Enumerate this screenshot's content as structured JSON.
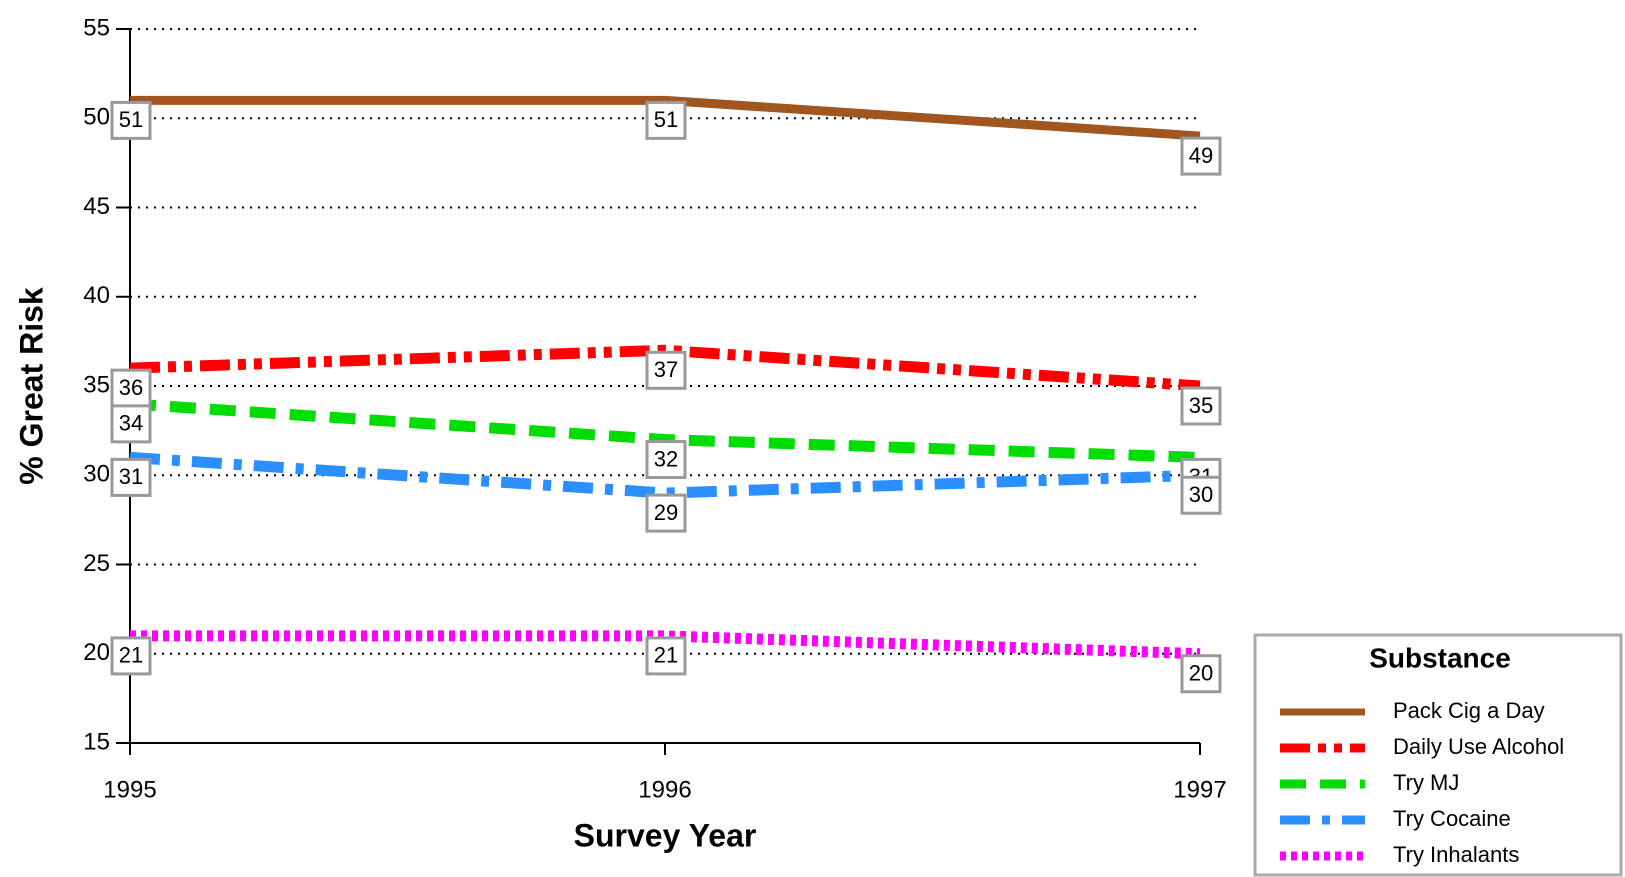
{
  "chart_data": {
    "type": "line",
    "x_label": "Survey Year",
    "y_label": "% Great Risk",
    "x": [
      1995,
      1996,
      1997
    ],
    "xlim": [
      1995,
      1997
    ],
    "xticks": [
      1995,
      1996,
      1997
    ],
    "ylim": [
      15,
      55
    ],
    "yticks": [
      15,
      20,
      25,
      30,
      35,
      40,
      45,
      50,
      55
    ],
    "grid": true,
    "legend_title": "Substance",
    "legend": "lower right",
    "series": [
      {
        "name": "Pack Cig a Day",
        "color": "#a0561e",
        "values": [
          51,
          51,
          49
        ]
      },
      {
        "name": "Daily Use Alcohol",
        "color": "#ff0000",
        "values": [
          36,
          37,
          35
        ]
      },
      {
        "name": "Try MJ",
        "color": "#00dd00",
        "values": [
          34,
          32,
          31
        ]
      },
      {
        "name": "Try Cocaine",
        "color": "#2b8fff",
        "values": [
          31,
          29,
          30
        ]
      },
      {
        "name": "Try Inhalants",
        "color": "#ff00ff",
        "values": [
          21,
          21,
          20
        ]
      }
    ]
  }
}
